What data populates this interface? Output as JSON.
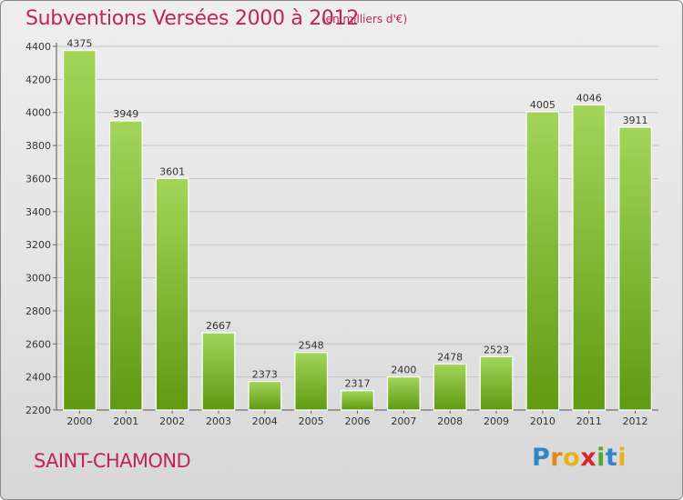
{
  "title": "Subventions Versées 2000 à 2012",
  "unit_note": "(en milliers d'€)",
  "city": "SAINT-CHAMOND",
  "logo": {
    "letters": [
      "P",
      "r",
      "o",
      "x",
      "i",
      "t",
      "i"
    ],
    "colors": [
      "#2f86c9",
      "#e48a1c",
      "#e8b21a",
      "#d7262e",
      "#5aa432",
      "#2f86c9",
      "#e8b21a"
    ]
  },
  "colors": {
    "bar_light": "#a2d55a",
    "bar_dark": "#5f9a12",
    "title": "#c0245a"
  },
  "chart_data": {
    "type": "bar",
    "title": "Subventions Versées 2000 à 2012",
    "categories": [
      "2000",
      "2001",
      "2002",
      "2003",
      "2004",
      "2005",
      "2006",
      "2007",
      "2008",
      "2009",
      "2010",
      "2011",
      "2012"
    ],
    "values": [
      4375,
      3949,
      3601,
      2667,
      2373,
      2548,
      2317,
      2400,
      2478,
      2523,
      4005,
      4046,
      3911
    ],
    "ylim": [
      2200,
      4400
    ],
    "yticks": [
      2200,
      2400,
      2600,
      2800,
      3000,
      3200,
      3400,
      3600,
      3800,
      4000,
      4200,
      4400
    ],
    "grid": true,
    "xlabel": "",
    "ylabel": ""
  }
}
